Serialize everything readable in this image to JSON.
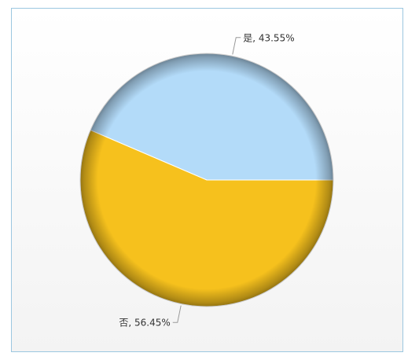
{
  "chart_data": {
    "type": "pie",
    "values": [
      43.55,
      56.45
    ],
    "value_labels": [
      "是, 43.55%",
      "否, 56.45%"
    ],
    "colors": [
      "#b3dbf9",
      "#f6c11d"
    ]
  }
}
